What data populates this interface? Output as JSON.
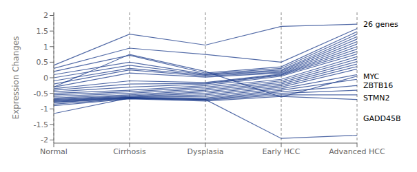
{
  "chart_data": {
    "type": "line",
    "ylabel": "Expression Changes",
    "categories": [
      "Normal",
      "Cirrhosis",
      "Dysplasia",
      "Early HCC",
      "Advanced HCC"
    ],
    "color": "#1a3a8a",
    "grid": "x",
    "ylim": [
      -2.1,
      2.1
    ],
    "yticks": [
      -2,
      -1.5,
      -1,
      -0.5,
      0,
      0.5,
      1,
      1.5,
      2
    ],
    "series": [
      {
        "values": [
          -1.15,
          -0.65,
          -0.7,
          -1.95,
          -1.85
        ]
      },
      {
        "values": [
          -0.3,
          0.75,
          0.2,
          -0.62,
          0.05
        ]
      },
      {
        "values": [
          0.4,
          1.4,
          1.05,
          1.65,
          1.72
        ]
      },
      {
        "values": [
          0.3,
          0.95,
          0.75,
          0.5,
          1.58
        ]
      },
      {
        "values": [
          0.2,
          0.72,
          0.15,
          0.35,
          1.48
        ]
      },
      {
        "values": [
          0.1,
          0.5,
          0.12,
          0.3,
          1.4
        ]
      },
      {
        "values": [
          0.0,
          0.4,
          0.1,
          0.25,
          1.32
        ]
      },
      {
        "values": [
          -0.1,
          0.3,
          0.08,
          0.22,
          1.24
        ]
      },
      {
        "values": [
          -0.2,
          0.25,
          0.05,
          0.18,
          1.16
        ]
      },
      {
        "values": [
          -0.3,
          0.15,
          0.02,
          0.15,
          1.08
        ]
      },
      {
        "values": [
          -0.35,
          -0.1,
          -0.15,
          0.12,
          1.0
        ]
      },
      {
        "values": [
          -0.4,
          -0.2,
          -0.18,
          0.1,
          0.92
        ]
      },
      {
        "values": [
          -0.45,
          -0.3,
          -0.2,
          0.08,
          0.84
        ]
      },
      {
        "values": [
          -0.5,
          -0.4,
          -0.25,
          0.05,
          0.76
        ]
      },
      {
        "values": [
          -0.55,
          -0.45,
          -0.3,
          -0.05,
          0.68
        ]
      },
      {
        "values": [
          -0.6,
          -0.5,
          -0.35,
          -0.1,
          0.6
        ]
      },
      {
        "values": [
          -0.65,
          -0.55,
          -0.4,
          -0.15,
          0.52
        ]
      },
      {
        "values": [
          -0.68,
          -0.58,
          -0.45,
          -0.2,
          0.44
        ]
      },
      {
        "values": [
          -0.7,
          -0.6,
          -0.5,
          -0.25,
          0.36
        ]
      },
      {
        "values": [
          -0.72,
          -0.62,
          -0.55,
          -0.3,
          0.28
        ]
      },
      {
        "values": [
          -0.74,
          -0.63,
          -0.6,
          -0.35,
          0.1
        ]
      },
      {
        "values": [
          -0.76,
          -0.64,
          -0.65,
          -0.4,
          -0.05
        ]
      },
      {
        "values": [
          -0.78,
          -0.65,
          -0.68,
          -0.45,
          -0.25
        ]
      },
      {
        "values": [
          -0.8,
          -0.66,
          -0.7,
          -0.5,
          -0.4
        ]
      },
      {
        "values": [
          -0.85,
          -0.67,
          -0.72,
          -0.55,
          -0.55
        ]
      },
      {
        "values": [
          -0.9,
          -0.68,
          -0.75,
          -0.6,
          -0.7
        ]
      }
    ],
    "annotations": [
      {
        "text": "26 genes",
        "x": "Advanced HCC",
        "y": 1.72
      },
      {
        "text": "MYC",
        "x": "Advanced HCC",
        "y": 0.05
      },
      {
        "text": "ZBTB16",
        "x": "Advanced HCC",
        "y": -0.25
      },
      {
        "text": "STMN2",
        "x": "Advanced HCC",
        "y": -0.65
      },
      {
        "text": "GADD45B",
        "x": "Advanced HCC",
        "y": -1.3
      }
    ]
  }
}
